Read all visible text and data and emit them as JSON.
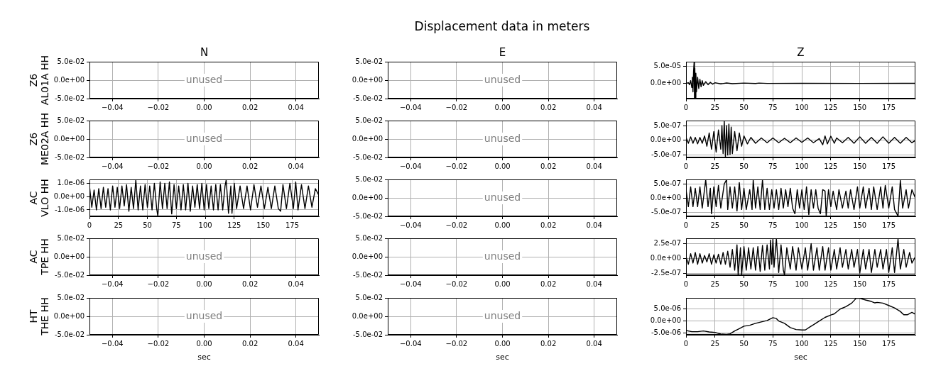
{
  "chart_data": [
    {
      "type": "line",
      "title": "N",
      "ylabel": "Z6\nAL01A HH",
      "xlim": [
        -0.05,
        0.05
      ],
      "xticks": [
        {
          "value": -0.04,
          "label": "−0.04"
        },
        {
          "value": -0.02,
          "label": "−0.02"
        },
        {
          "value": 0,
          "label": "0.00"
        },
        {
          "value": 0.02,
          "label": "0.02"
        },
        {
          "value": 0.04,
          "label": "0.04"
        }
      ],
      "ylim": [
        -0.05,
        0.05
      ],
      "yticks": [
        {
          "value": -0.05,
          "label": "-5.0e-02"
        },
        {
          "value": 0,
          "label": "0.0e+00"
        },
        {
          "value": 0.05,
          "label": "5.0e-02"
        }
      ],
      "grid": true,
      "annotations": [
        "unused"
      ]
    },
    {
      "type": "line",
      "title": "E",
      "subtitle": "Displacement data in meters",
      "xlim": [
        -0.05,
        0.05
      ],
      "xticks": [
        {
          "value": -0.04,
          "label": "−0.04"
        },
        {
          "value": -0.02,
          "label": "−0.02"
        },
        {
          "value": 0,
          "label": "0.00"
        },
        {
          "value": 0.02,
          "label": "0.02"
        },
        {
          "value": 0.04,
          "label": "0.04"
        }
      ],
      "ylim": [
        -0.05,
        0.05
      ],
      "yticks": [
        {
          "value": -0.05,
          "label": "-5.0e-02"
        },
        {
          "value": 0,
          "label": "0.0e+00"
        },
        {
          "value": 0.05,
          "label": "5.0e-02"
        }
      ],
      "grid": true,
      "annotations": [
        "unused"
      ]
    },
    {
      "type": "line",
      "title": "Z",
      "color": "#000000",
      "xlim": [
        0,
        198
      ],
      "xticks": [
        0,
        25,
        50,
        75,
        100,
        125,
        150,
        175
      ],
      "ylim": [
        -4.5e-05,
        6.4e-05
      ],
      "yticks": [
        {
          "value": 0,
          "label": "0.0e+00"
        },
        {
          "value": 5e-05,
          "label": "5.0e-05"
        }
      ],
      "grid": true,
      "x": [
        0,
        2,
        3,
        4,
        5,
        5.5,
        6,
        6.5,
        7,
        7.3,
        7.6,
        8,
        8.5,
        9,
        10,
        11,
        12,
        13,
        14,
        15,
        17,
        19,
        21,
        23,
        25,
        30,
        35,
        40,
        50,
        60,
        63,
        70,
        100,
        150,
        198
      ],
      "values": [
        0,
        2e-06,
        -4e-06,
        8e-06,
        -1.2e-05,
        1.8e-05,
        -2.5e-05,
        3.5e-05,
        6.3e-05,
        -4.4e-05,
        4.5e-05,
        -4.2e-05,
        3e-05,
        -2.5e-05,
        1.8e-05,
        -1.5e-05,
        1.2e-05,
        -1e-05,
        8e-06,
        -6e-06,
        5e-06,
        -4e-06,
        3e-06,
        -2.5e-06,
        2e-06,
        -1.5e-06,
        1e-06,
        -1e-06,
        8e-07,
        -6e-07,
        8e-07,
        -3e-07,
        2e-07,
        -1e-07,
        0
      ]
    },
    {
      "type": "line",
      "ylabel": "Z6\nME02A HH",
      "xlim": [
        -0.05,
        0.05
      ],
      "xticks": [
        {
          "value": -0.04,
          "label": "−0.04"
        },
        {
          "value": -0.02,
          "label": "−0.02"
        },
        {
          "value": 0,
          "label": "0.00"
        },
        {
          "value": 0.02,
          "label": "0.02"
        },
        {
          "value": 0.04,
          "label": "0.04"
        }
      ],
      "ylim": [
        -0.05,
        0.05
      ],
      "yticks": [
        {
          "value": -0.05,
          "label": "-5.0e-02"
        },
        {
          "value": 0,
          "label": "0.0e+00"
        },
        {
          "value": 0.05,
          "label": "5.0e-02"
        }
      ],
      "grid": true,
      "annotations": [
        "unused"
      ]
    },
    {
      "type": "line",
      "xlim": [
        -0.05,
        0.05
      ],
      "xticks": [
        {
          "value": -0.04,
          "label": "−0.04"
        },
        {
          "value": -0.02,
          "label": "−0.02"
        },
        {
          "value": 0,
          "label": "0.00"
        },
        {
          "value": 0.02,
          "label": "0.02"
        },
        {
          "value": 0.04,
          "label": "0.04"
        }
      ],
      "ylim": [
        -0.05,
        0.05
      ],
      "yticks": [
        {
          "value": -0.05,
          "label": "-5.0e-02"
        },
        {
          "value": 0,
          "label": "0.0e+00"
        },
        {
          "value": 0.05,
          "label": "5.0e-02"
        }
      ],
      "grid": true,
      "annotations": [
        "unused"
      ]
    },
    {
      "type": "line",
      "color": "#000000",
      "xlim": [
        0,
        198
      ],
      "xticks": [
        0,
        25,
        50,
        75,
        100,
        125,
        150,
        175
      ],
      "ylim": [
        -5.8e-07,
        6.7e-07
      ],
      "yticks": [
        {
          "value": -5e-07,
          "label": "-5.0e-07"
        },
        {
          "value": 0,
          "label": "0.0e+00"
        },
        {
          "value": 5e-07,
          "label": "5.0e-07"
        }
      ],
      "grid": true,
      "x": [
        0,
        2,
        4,
        6,
        8,
        10,
        12,
        14,
        16,
        18,
        20,
        22,
        24,
        26,
        28,
        30,
        31,
        32,
        33,
        34,
        35,
        36,
        37,
        38,
        39,
        40,
        42,
        44,
        46,
        48,
        50,
        53,
        56,
        60,
        65,
        70,
        75,
        80,
        85,
        90,
        95,
        100,
        105,
        110,
        115,
        118,
        120,
        122,
        125,
        128,
        130,
        135,
        140,
        145,
        150,
        155,
        160,
        165,
        170,
        175,
        180,
        185,
        190,
        195,
        198
      ],
      "values": [
        1e-07,
        -1e-07,
        1.2e-07,
        -1e-07,
        1e-07,
        -1.2e-07,
        1e-07,
        -1e-07,
        1.5e-07,
        -2e-07,
        2.5e-07,
        -3e-07,
        3e-07,
        -4e-07,
        3.5e-07,
        -3e-07,
        5e-07,
        -4.5e-07,
        6.6e-07,
        -5.5e-07,
        5e-07,
        -5e-07,
        5.5e-07,
        -4.8e-07,
        4.5e-07,
        -4.5e-07,
        3e-07,
        -3.5e-07,
        2.5e-07,
        -2e-07,
        1.5e-07,
        -1.2e-07,
        1e-07,
        -1e-07,
        8e-08,
        -8e-08,
        8e-08,
        -8e-08,
        7e-08,
        -8e-08,
        8e-08,
        -7e-08,
        8e-08,
        -8e-08,
        6e-08,
        -1.5e-07,
        1.5e-07,
        -1.2e-07,
        1.4e-07,
        -1e-07,
        8e-08,
        -8e-08,
        1e-07,
        -1e-07,
        1.2e-07,
        -1e-07,
        1e-07,
        -1e-07,
        1.2e-07,
        -1e-07,
        1e-07,
        -1e-07,
        1e-07,
        -8e-08,
        0
      ]
    },
    {
      "type": "line",
      "ylabel": "AC\nVLO HH",
      "color": "#000000",
      "xlim": [
        0,
        198
      ],
      "xticks": [
        0,
        25,
        50,
        75,
        100,
        125,
        150,
        175
      ],
      "ylim": [
        -1.48e-06,
        1.29e-06
      ],
      "yticks": [
        {
          "value": -1e-06,
          "label": "-1.0e-06"
        },
        {
          "value": 0,
          "label": "0.0e+00"
        },
        {
          "value": 1e-06,
          "label": "1.0e-06"
        }
      ],
      "grid": true,
      "x": [
        0,
        2,
        4,
        6,
        8,
        10,
        12,
        14,
        16,
        18,
        20,
        22,
        24,
        26,
        28,
        30,
        32,
        34,
        36,
        38,
        40,
        42,
        44,
        46,
        48,
        50,
        52,
        54,
        56,
        58,
        59,
        61,
        63,
        65,
        67,
        69,
        71,
        73,
        75,
        77,
        79,
        81,
        83,
        85,
        87,
        89,
        91,
        93,
        95,
        97,
        99,
        101,
        103,
        105,
        107,
        109,
        111,
        113,
        115,
        117,
        118,
        120,
        122,
        123,
        125,
        127,
        130,
        133,
        136,
        139,
        142,
        145,
        148,
        151,
        154,
        157,
        160,
        163,
        165,
        167,
        170,
        173,
        176,
        178,
        180,
        183,
        186,
        189,
        192,
        195,
        198
      ],
      "values": [
        8e-07,
        -8e-07,
        5e-07,
        -1e-06,
        6e-07,
        -9e-07,
        7e-07,
        -8e-07,
        6e-07,
        -1e-06,
        8e-07,
        -8e-07,
        7e-07,
        -9e-07,
        8e-07,
        -7e-07,
        9e-07,
        -1.1e-06,
        7e-07,
        -9e-07,
        1.25e-06,
        -1e-06,
        8e-07,
        -1e-06,
        9e-07,
        -8e-07,
        8e-07,
        -1e-06,
        1e-06,
        -9e-07,
        -1.45e-06,
        1.1e-06,
        -9e-07,
        1e-06,
        -9e-07,
        1.1e-06,
        -1.3e-06,
        9e-07,
        -9e-07,
        8e-07,
        -1e-06,
        9e-07,
        -1e-06,
        1e-06,
        -1.1e-06,
        8e-07,
        -8e-07,
        9e-07,
        -9e-07,
        1e-06,
        -1e-06,
        9e-07,
        -9e-07,
        8e-07,
        -1e-06,
        9e-07,
        -1e-06,
        9e-07,
        -1e-06,
        8e-07,
        1.25e-06,
        -1.25e-06,
        8e-07,
        -1.25e-06,
        1e-06,
        -9e-07,
        8e-07,
        -9e-07,
        8e-07,
        -1e-06,
        9e-07,
        -8e-07,
        8e-07,
        -9e-07,
        7e-07,
        -9e-07,
        8e-07,
        -9e-07,
        -1.1e-06,
        9e-07,
        -9e-07,
        1e-06,
        -9e-07,
        1.1e-06,
        -1e-06,
        9e-07,
        -9e-07,
        8e-07,
        -8e-07,
        6e-07,
        1e-07
      ]
    },
    {
      "type": "line",
      "xlim": [
        -0.05,
        0.05
      ],
      "xticks": [
        {
          "value": -0.04,
          "label": "−0.04"
        },
        {
          "value": -0.02,
          "label": "−0.02"
        },
        {
          "value": 0,
          "label": "0.00"
        },
        {
          "value": 0.02,
          "label": "0.02"
        },
        {
          "value": 0.04,
          "label": "0.04"
        }
      ],
      "ylim": [
        -0.05,
        0.05
      ],
      "yticks": [
        {
          "value": -0.05,
          "label": "-5.0e-02"
        },
        {
          "value": 0,
          "label": "0.0e+00"
        },
        {
          "value": 0.05,
          "label": "5.0e-02"
        }
      ],
      "grid": true,
      "annotations": [
        "unused"
      ]
    },
    {
      "type": "line",
      "color": "#000000",
      "xlim": [
        0,
        198
      ],
      "xticks": [
        0,
        25,
        50,
        75,
        100,
        125,
        150,
        175
      ],
      "ylim": [
        -6.4e-07,
        6.6e-07
      ],
      "yticks": [
        {
          "value": -5e-07,
          "label": "-5.0e-07"
        },
        {
          "value": 0,
          "label": "0.0e+00"
        },
        {
          "value": 5e-07,
          "label": "5.0e-07"
        }
      ],
      "grid": true,
      "x": [
        0,
        2,
        4,
        6,
        8,
        10,
        12,
        14,
        17,
        19,
        21,
        22,
        24,
        26,
        28,
        30,
        33,
        35,
        36,
        38,
        40,
        42,
        44,
        46,
        48,
        50,
        52,
        55,
        57,
        58,
        60,
        62,
        64,
        66,
        68,
        70,
        72,
        74,
        76,
        78,
        80,
        82,
        84,
        86,
        88,
        90,
        92,
        94,
        96,
        98,
        100,
        102,
        104,
        106,
        108,
        110,
        112,
        114,
        116,
        118,
        120,
        121,
        123,
        125,
        127,
        130,
        132,
        135,
        138,
        140,
        142,
        145,
        148,
        150,
        153,
        155,
        158,
        160,
        162,
        165,
        168,
        170,
        172,
        175,
        178,
        180,
        183,
        185,
        187,
        190,
        192,
        195,
        198
      ],
      "values": [
        3e-07,
        -3e-07,
        4e-07,
        -3e-07,
        3.5e-07,
        -3e-07,
        4e-07,
        -3.5e-07,
        6.5e-07,
        -3e-07,
        3.5e-07,
        -5.5e-07,
        4e-07,
        -3e-07,
        4.5e-07,
        -3.5e-07,
        5e-07,
        6.5e-07,
        -4e-07,
        4e-07,
        -3.5e-07,
        4e-07,
        -4.5e-07,
        5.5e-07,
        -4e-07,
        3.5e-07,
        -4e-07,
        3e-07,
        -4e-07,
        6.5e-07,
        -3.5e-07,
        4e-07,
        -4e-07,
        6.5e-07,
        -4e-07,
        3.5e-07,
        -4e-07,
        3e-07,
        -3.5e-07,
        3e-07,
        -4e-07,
        3.5e-07,
        -3.5e-07,
        3e-07,
        -3e-07,
        3.5e-07,
        -3.5e-07,
        -5.5e-07,
        3e-07,
        -3.5e-07,
        3e-07,
        -4e-07,
        4e-07,
        -5.8e-07,
        3e-07,
        -3.5e-07,
        3e-07,
        -3.5e-07,
        -5.5e-07,
        3e-07,
        2.5e-07,
        -6.3e-07,
        3e-07,
        -3e-07,
        2.5e-07,
        -4e-07,
        3e-07,
        -3.5e-07,
        2.5e-07,
        -3.5e-07,
        3e-07,
        -4e-07,
        4e-07,
        -3.5e-07,
        4e-07,
        -3.5e-07,
        3.5e-07,
        -4e-07,
        4e-07,
        -4e-07,
        4e-07,
        -3.5e-07,
        4.5e-07,
        -3.5e-07,
        4e-07,
        -4e-07,
        -6.3e-07,
        6.3e-07,
        -3.5e-07,
        3e-07,
        -3.5e-07,
        3e-07,
        0
      ]
    },
    {
      "type": "line",
      "ylabel": "AC\nTPE HH",
      "xlim": [
        -0.05,
        0.05
      ],
      "xticks": [
        {
          "value": -0.04,
          "label": "−0.04"
        },
        {
          "value": -0.02,
          "label": "−0.02"
        },
        {
          "value": 0,
          "label": "0.00"
        },
        {
          "value": 0.02,
          "label": "0.02"
        },
        {
          "value": 0.04,
          "label": "0.04"
        }
      ],
      "ylim": [
        -0.05,
        0.05
      ],
      "yticks": [
        {
          "value": -0.05,
          "label": "-5.0e-02"
        },
        {
          "value": 0,
          "label": "0.0e+00"
        },
        {
          "value": 0.05,
          "label": "5.0e-02"
        }
      ],
      "grid": true,
      "annotations": [
        "unused"
      ]
    },
    {
      "type": "line",
      "xlim": [
        -0.05,
        0.05
      ],
      "xticks": [
        {
          "value": -0.04,
          "label": "−0.04"
        },
        {
          "value": -0.02,
          "label": "−0.02"
        },
        {
          "value": 0,
          "label": "0.00"
        },
        {
          "value": 0.02,
          "label": "0.02"
        },
        {
          "value": 0.04,
          "label": "0.04"
        }
      ],
      "ylim": [
        -0.05,
        0.05
      ],
      "yticks": [
        {
          "value": -0.05,
          "label": "-5.0e-02"
        },
        {
          "value": 0,
          "label": "0.0e+00"
        },
        {
          "value": 0.05,
          "label": "5.0e-02"
        }
      ],
      "grid": true,
      "annotations": [
        "unused"
      ]
    },
    {
      "type": "line",
      "color": "#000000",
      "xlim": [
        0,
        198
      ],
      "xticks": [
        0,
        25,
        50,
        75,
        100,
        125,
        150,
        175
      ],
      "ylim": [
        -2.85e-07,
        3.4e-07
      ],
      "yticks": [
        {
          "value": -2.5e-07,
          "label": "-2.5e-07"
        },
        {
          "value": 0,
          "label": "0.0e+00"
        },
        {
          "value": 2.5e-07,
          "label": "2.5e-07"
        }
      ],
      "grid": true,
      "x": [
        0,
        2,
        4,
        6,
        8,
        10,
        12,
        14,
        16,
        18,
        20,
        22,
        24,
        26,
        28,
        30,
        32,
        34,
        36,
        38,
        40,
        42,
        44,
        45,
        47,
        48,
        50,
        52,
        54,
        56,
        58,
        60,
        62,
        64,
        66,
        68,
        70,
        72,
        73,
        74,
        75,
        76,
        78,
        80,
        82,
        84,
        85,
        87,
        90,
        92,
        95,
        97,
        100,
        103,
        105,
        108,
        110,
        113,
        115,
        118,
        120,
        123,
        125,
        128,
        130,
        133,
        135,
        138,
        140,
        143,
        145,
        148,
        150,
        153,
        155,
        158,
        160,
        163,
        165,
        168,
        170,
        173,
        175,
        178,
        180,
        183,
        185,
        188,
        190,
        193,
        195,
        198
      ],
      "values": [
        3e-08,
        -1e-07,
        8e-08,
        -8e-08,
        1e-07,
        -1e-07,
        8e-08,
        -8e-08,
        5e-08,
        -6e-08,
        8e-08,
        -1e-07,
        6e-08,
        -8e-08,
        7e-08,
        -1e-07,
        1e-07,
        -1e-07,
        1.2e-07,
        -1.5e-07,
        1.5e-07,
        -2e-07,
        2.3e-07,
        -2.8e-07,
        1.8e-07,
        -2.8e-07,
        2e-07,
        -2e-07,
        1.8e-07,
        -1.8e-07,
        1.8e-07,
        -2e-07,
        2e-07,
        -2.2e-07,
        2.2e-07,
        -2e-07,
        2.3e-07,
        -1.8e-07,
        3.1e-07,
        -1e-07,
        3.35e-07,
        -1.5e-07,
        3.35e-07,
        -2.4e-07,
        2.3e-07,
        -2e-07,
        -2.8e-07,
        1.8e-07,
        -1.8e-07,
        2e-07,
        -2e-07,
        1.8e-07,
        -1.8e-07,
        1.8e-07,
        -2e-07,
        2.5e-07,
        -2e-07,
        1.8e-07,
        -2e-07,
        2e-07,
        -2e-07,
        1.8e-07,
        -2e-07,
        1.5e-07,
        -1.8e-07,
        1.8e-07,
        -1.5e-07,
        1.5e-07,
        -1.8e-07,
        1.5e-07,
        -1.5e-07,
        1.5e-07,
        -2.5e-07,
        1.5e-07,
        -1.8e-07,
        1.5e-07,
        -2.4e-07,
        1.5e-07,
        -1.5e-07,
        1.5e-07,
        -1.8e-07,
        1.5e-07,
        -2.4e-07,
        1.8e-07,
        -2.4e-07,
        3.3e-07,
        -1.8e-07,
        1.5e-07,
        -1.5e-07,
        1e-07,
        -8e-08,
        3e-08
      ]
    },
    {
      "type": "line",
      "ylabel": "HT\nTHE HH",
      "xlabel": "sec",
      "xlim": [
        -0.05,
        0.05
      ],
      "xticks": [
        {
          "value": -0.04,
          "label": "−0.04"
        },
        {
          "value": -0.02,
          "label": "−0.02"
        },
        {
          "value": 0,
          "label": "0.00"
        },
        {
          "value": 0.02,
          "label": "0.02"
        },
        {
          "value": 0.04,
          "label": "0.04"
        }
      ],
      "ylim": [
        -0.05,
        0.05
      ],
      "yticks": [
        {
          "value": -0.05,
          "label": "-5.0e-02"
        },
        {
          "value": 0,
          "label": "0.0e+00"
        },
        {
          "value": 0.05,
          "label": "5.0e-02"
        }
      ],
      "grid": true,
      "annotations": [
        "unused"
      ]
    },
    {
      "type": "line",
      "xlabel": "sec",
      "xlim": [
        -0.05,
        0.05
      ],
      "xticks": [
        {
          "value": -0.04,
          "label": "−0.04"
        },
        {
          "value": -0.02,
          "label": "−0.02"
        },
        {
          "value": 0,
          "label": "0.00"
        },
        {
          "value": 0.02,
          "label": "0.02"
        },
        {
          "value": 0.04,
          "label": "0.04"
        }
      ],
      "ylim": [
        -0.05,
        0.05
      ],
      "yticks": [
        {
          "value": -0.05,
          "label": "-5.0e-02"
        },
        {
          "value": 0,
          "label": "0.0e+00"
        },
        {
          "value": 0.05,
          "label": "5.0e-02"
        }
      ],
      "grid": true,
      "annotations": [
        "unused"
      ]
    },
    {
      "type": "line",
      "xlabel": "sec",
      "color": "#000000",
      "xlim": [
        0,
        198
      ],
      "xticks": [
        0,
        25,
        50,
        75,
        100,
        125,
        150,
        175
      ],
      "ylim": [
        -5.8e-06,
        9.7e-06
      ],
      "yticks": [
        {
          "value": -5e-06,
          "label": "-5.0e-06"
        },
        {
          "value": 0,
          "label": "0.0e+00"
        },
        {
          "value": 5e-06,
          "label": "5.0e-06"
        }
      ],
      "grid": true,
      "x": [
        0,
        5,
        10,
        15,
        20,
        25,
        30,
        35,
        38,
        42,
        46,
        50,
        55,
        60,
        65,
        70,
        75,
        78,
        80,
        85,
        90,
        95,
        100,
        103,
        107,
        110,
        115,
        120,
        125,
        128,
        133,
        138,
        143,
        147,
        150,
        155,
        160,
        163,
        165,
        170,
        175,
        180,
        185,
        188,
        191,
        195,
        198
      ],
      "values": [
        -4e-06,
        -4.5e-06,
        -4.5e-06,
        -4.2e-06,
        -4.6e-06,
        -4.8e-06,
        -5.5e-06,
        -5.6e-06,
        -5.4e-06,
        -4.2e-06,
        -3.2e-06,
        -2.2e-06,
        -1.8e-06,
        -1e-06,
        -4e-07,
        2e-07,
        1.4e-06,
        1e-06,
        0,
        -1e-06,
        -2.8e-06,
        -3.6e-06,
        -3.8e-06,
        -3.8e-06,
        -2.5e-06,
        -1.6e-06,
        0,
        1.5e-06,
        2.5e-06,
        3e-06,
        5e-06,
        6e-06,
        7.5e-06,
        9.6e-06,
        9.5e-06,
        8.8e-06,
        8.2e-06,
        7.6e-06,
        7.8e-06,
        7.5e-06,
        6.5e-06,
        5.5e-06,
        4e-06,
        2.6e-06,
        2.6e-06,
        3.6e-06,
        2.8e-06
      ]
    }
  ]
}
